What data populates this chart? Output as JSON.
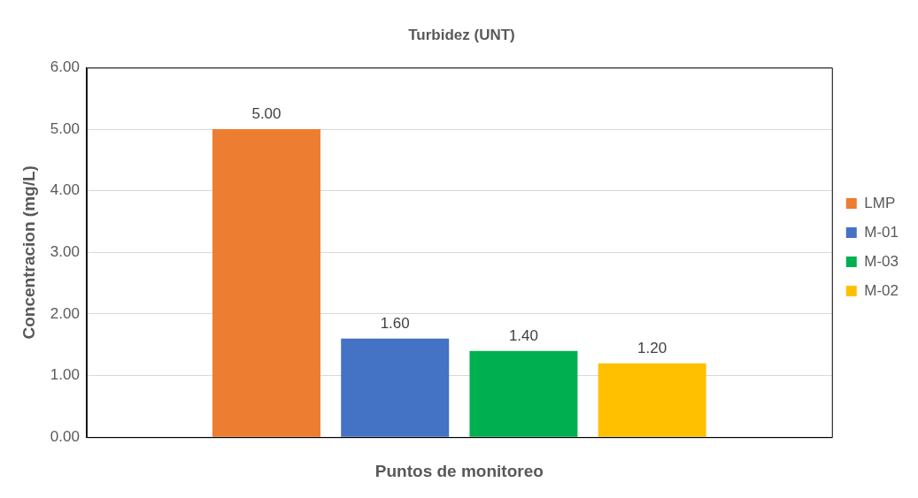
{
  "chart_data": {
    "type": "bar",
    "title": "Turbidez (UNT)",
    "xlabel": "Puntos de monitoreo",
    "ylabel": "Concentracion (mg/L)",
    "categories": [
      null
    ],
    "series": [
      {
        "name": "LMP",
        "color": "#ed7d31",
        "values": [
          5.0
        ],
        "value_labels": [
          "5.00"
        ]
      },
      {
        "name": "M-01",
        "color": "#4472c4",
        "values": [
          1.6
        ],
        "value_labels": [
          "1.60"
        ]
      },
      {
        "name": "M-03",
        "color": "#00b050",
        "values": [
          1.4
        ],
        "value_labels": [
          "1.40"
        ]
      },
      {
        "name": "M-02",
        "color": "#ffc000",
        "values": [
          1.2
        ],
        "value_labels": [
          "1.20"
        ]
      }
    ],
    "ylim": [
      0,
      6
    ],
    "yticks": [
      {
        "value": 0,
        "label": "0.00"
      },
      {
        "value": 1,
        "label": "1.00"
      },
      {
        "value": 2,
        "label": "2.00"
      },
      {
        "value": 3,
        "label": "3.00"
      },
      {
        "value": 4,
        "label": "4.00"
      },
      {
        "value": 5,
        "label": "5.00"
      },
      {
        "value": 6,
        "label": "6.00"
      }
    ],
    "grid": "y",
    "legend": "right"
  }
}
